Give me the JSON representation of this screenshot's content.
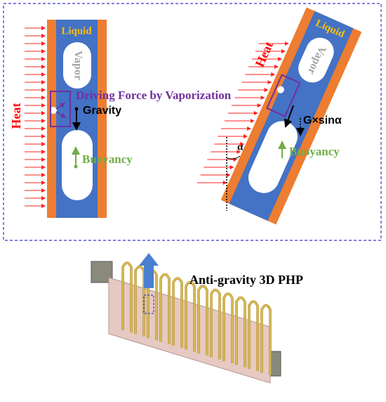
{
  "left": {
    "liquid": "Liquid",
    "vapor": "Vapor",
    "heat": "Heat",
    "gravity": "Gravity",
    "buoyancy": "Buoyancy"
  },
  "driving_force": "Driving Force by Vaporization",
  "right": {
    "liquid": "Liquid",
    "vapor": "Vapor",
    "heat": "Heat",
    "gravity": "G×sinα",
    "buoyancy": "Buoyancy",
    "angle": "α"
  },
  "caption": "Anti-gravity 3D PHP"
}
